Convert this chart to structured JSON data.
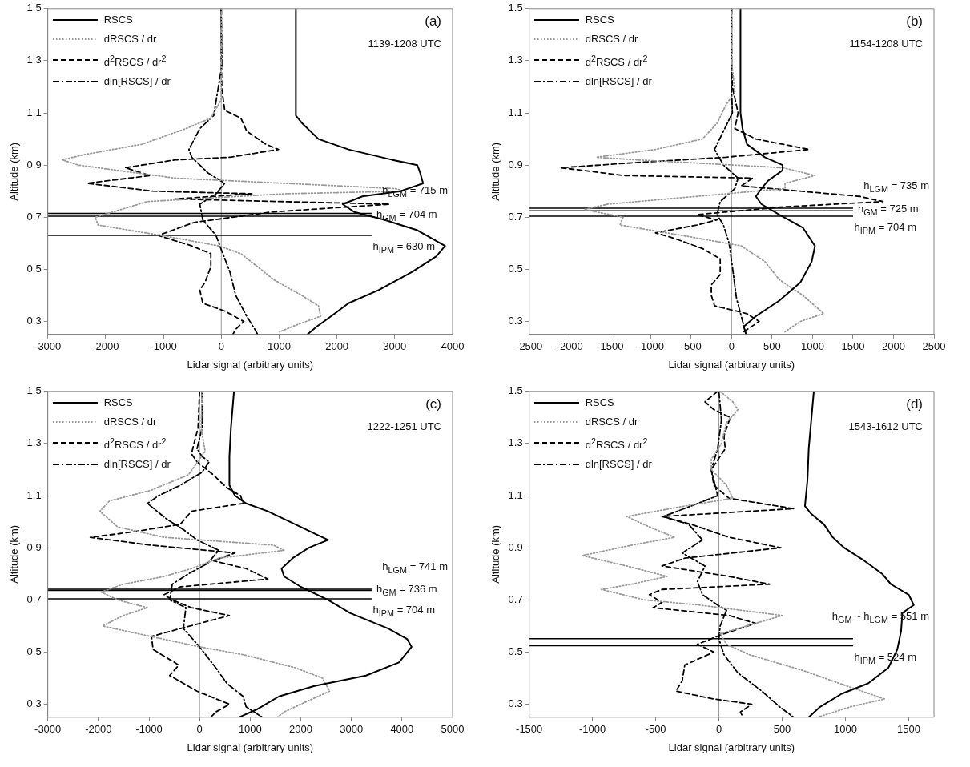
{
  "chart_data": [
    {
      "type": "line",
      "xlabel": "Lidar signal (arbitrary units)",
      "ylabel": "Altitude (km)",
      "annotations": [
        "(a)",
        "1139-1208 UTC"
      ],
      "xlim": [
        -3000,
        4000
      ],
      "xticks": [
        -3000,
        -2000,
        -1000,
        0,
        1000,
        2000,
        3000,
        4000
      ],
      "ylim": [
        0.25,
        1.5
      ],
      "yticks": [
        0.3,
        0.5,
        0.7,
        0.9,
        1.1,
        1.3,
        1.5
      ],
      "legend": "top left",
      "marker": "none",
      "ref_lines": [
        {
          "axis": "x",
          "value": 0,
          "color": "#999999"
        },
        {
          "axis": "y",
          "value": 0.715,
          "label": "h$_{LGM}$ = 715 m"
        },
        {
          "axis": "y",
          "value": 0.704,
          "label": "h$_{GM}$ = 704 m"
        },
        {
          "axis": "y",
          "value": 0.63,
          "label": "h$_{IPM}$ = 630 m"
        }
      ],
      "series": [
        {
          "name": "RSCS",
          "color": "#000000",
          "line_style": "solid",
          "x": [
            1290,
            1290,
            1400,
            1680,
            2200,
            2960,
            3390,
            3440,
            3490,
            3100,
            2440,
            2100,
            2300,
            2820,
            3390,
            3870,
            3720,
            3300,
            2720,
            2200,
            1900,
            1650,
            1490
          ],
          "values": [
            1.5,
            1.09,
            1.06,
            1.0,
            0.96,
            0.92,
            0.9,
            0.87,
            0.83,
            0.8,
            0.78,
            0.75,
            0.72,
            0.69,
            0.65,
            0.59,
            0.55,
            0.49,
            0.42,
            0.37,
            0.32,
            0.28,
            0.25
          ]
        },
        {
          "name": "dRSCS / dr",
          "color": "#999999",
          "line_style": "dotted",
          "x": [
            0,
            0,
            -180,
            -610,
            -1370,
            -2370,
            -2750,
            -2470,
            -800,
            3010,
            3150,
            1100,
            -1280,
            -2180,
            -2130,
            -1040,
            -40,
            340,
            910,
            1390,
            1680,
            1720,
            1340,
            1010
          ],
          "values": [
            1.5,
            1.15,
            1.08,
            1.04,
            0.98,
            0.94,
            0.92,
            0.9,
            0.85,
            0.81,
            0.8,
            0.79,
            0.76,
            0.7,
            0.67,
            0.63,
            0.59,
            0.56,
            0.46,
            0.4,
            0.36,
            0.32,
            0.29,
            0.26
          ]
        },
        {
          "name": "d$^{2}$RSCS / dr$^{2}$",
          "color": "#000000",
          "line_style": "dashed",
          "x": [
            0,
            0,
            10,
            60,
            340,
            440,
            770,
            990,
            150,
            -800,
            -1660,
            -1230,
            -2320,
            -1180,
            530,
            -800,
            2910,
            870,
            -470,
            -1090,
            -510,
            -180,
            -180,
            -280,
            -370,
            -320,
            60,
            390,
            250,
            200
          ],
          "values": [
            1.5,
            1.3,
            1.19,
            1.11,
            1.08,
            1.03,
            0.98,
            0.96,
            0.93,
            0.92,
            0.89,
            0.86,
            0.83,
            0.8,
            0.79,
            0.77,
            0.75,
            0.72,
            0.68,
            0.63,
            0.59,
            0.56,
            0.51,
            0.45,
            0.42,
            0.37,
            0.34,
            0.3,
            0.27,
            0.25
          ]
        },
        {
          "name": "dln[RSCS] / dr",
          "color": "#000000",
          "line_style": "dashdot",
          "x": [
            0,
            10,
            -130,
            -370,
            -560,
            -510,
            -230,
            60,
            -90,
            -370,
            -320,
            -90,
            10,
            150,
            250,
            440,
            580,
            630
          ],
          "values": [
            1.5,
            1.28,
            1.09,
            1.04,
            0.96,
            0.93,
            0.87,
            0.83,
            0.79,
            0.75,
            0.69,
            0.63,
            0.57,
            0.49,
            0.4,
            0.32,
            0.27,
            0.25
          ]
        }
      ]
    },
    {
      "type": "line",
      "xlabel": "Lidar signal (arbitrary units)",
      "ylabel": "Altitude (km)",
      "annotations": [
        "(b)",
        "1154-1208 UTC"
      ],
      "xlim": [
        -2500,
        2500
      ],
      "xticks": [
        -2500,
        -2000,
        -1500,
        -1000,
        -500,
        0,
        500,
        1000,
        1500,
        2000,
        2500
      ],
      "ylim": [
        0.25,
        1.5
      ],
      "yticks": [
        0.3,
        0.5,
        0.7,
        0.9,
        1.1,
        1.3,
        1.5
      ],
      "legend": "top left",
      "marker": "none",
      "ref_lines": [
        {
          "axis": "x",
          "value": 0,
          "color": "#999999"
        },
        {
          "axis": "y",
          "value": 0.735,
          "label": "h$_{LGM}$ = 735 m"
        },
        {
          "axis": "y",
          "value": 0.725,
          "label": "h$_{GM}$ = 725 m"
        },
        {
          "axis": "y",
          "value": 0.704,
          "label": "h$_{IPM}$ = 704 m"
        }
      ],
      "series": [
        {
          "name": "RSCS",
          "color": "#000000",
          "line_style": "solid",
          "x": [
            110,
            110,
            135,
            190,
            410,
            630,
            630,
            450,
            370,
            300,
            370,
            590,
            880,
            1030,
            990,
            850,
            590,
            300,
            150,
            180
          ],
          "values": [
            1.5,
            1.1,
            1.04,
            0.98,
            0.93,
            0.9,
            0.88,
            0.84,
            0.81,
            0.78,
            0.75,
            0.71,
            0.66,
            0.59,
            0.53,
            0.45,
            0.38,
            0.32,
            0.28,
            0.25
          ]
        },
        {
          "name": "dRSCS / dr",
          "color": "#999999",
          "line_style": "dotted",
          "x": [
            0,
            0,
            40,
            -70,
            -180,
            -360,
            -940,
            -1670,
            -1160,
            630,
            1030,
            660,
            660,
            -430,
            -1530,
            -1820,
            -1340,
            -1380,
            -610,
            120,
            410,
            590,
            880,
            1140,
            850,
            660
          ],
          "values": [
            1.5,
            1.3,
            1.18,
            1.13,
            1.06,
            1.0,
            0.96,
            0.93,
            0.92,
            0.89,
            0.86,
            0.83,
            0.81,
            0.78,
            0.75,
            0.73,
            0.7,
            0.67,
            0.63,
            0.59,
            0.53,
            0.46,
            0.4,
            0.33,
            0.3,
            0.26
          ]
        },
        {
          "name": "d$^{2}$RSCS / dr$^{2}$",
          "color": "#000000",
          "line_style": "dashed",
          "x": [
            0,
            0,
            10,
            80,
            40,
            300,
            960,
            -70,
            -1160,
            -2110,
            -1340,
            260,
            120,
            1580,
            1870,
            660,
            -430,
            -180,
            -430,
            -940,
            -720,
            -360,
            -140,
            -140,
            -250,
            -250,
            -210,
            190,
            340,
            150
          ],
          "values": [
            1.5,
            1.3,
            1.2,
            1.1,
            1.04,
            1.0,
            0.96,
            0.93,
            0.91,
            0.89,
            0.86,
            0.85,
            0.82,
            0.78,
            0.76,
            0.74,
            0.71,
            0.69,
            0.67,
            0.64,
            0.62,
            0.58,
            0.54,
            0.48,
            0.44,
            0.4,
            0.36,
            0.33,
            0.3,
            0.26
          ]
        },
        {
          "name": "dln[RSCS] / dr",
          "color": "#000000",
          "line_style": "dashdot",
          "x": [
            0,
            0,
            10,
            -100,
            -210,
            -100,
            80,
            40,
            -140,
            -180,
            -100,
            -30,
            10,
            60,
            120,
            170
          ],
          "values": [
            1.5,
            1.2,
            1.1,
            1.03,
            0.96,
            0.9,
            0.85,
            0.81,
            0.76,
            0.71,
            0.67,
            0.6,
            0.51,
            0.39,
            0.32,
            0.26
          ]
        }
      ]
    },
    {
      "type": "line",
      "xlabel": "Lidar signal (arbitrary units)",
      "ylabel": "Altitude (km)",
      "annotations": [
        "(c)",
        "1222-1251 UTC"
      ],
      "xlim": [
        -3000,
        5000
      ],
      "xticks": [
        -3000,
        -2000,
        -1000,
        0,
        1000,
        2000,
        3000,
        4000,
        5000
      ],
      "ylim": [
        0.25,
        1.5
      ],
      "yticks": [
        0.3,
        0.5,
        0.7,
        0.9,
        1.1,
        1.3,
        1.5
      ],
      "legend": "top left",
      "marker": "none",
      "ref_lines": [
        {
          "axis": "x",
          "value": 0,
          "color": "#999999"
        },
        {
          "axis": "y",
          "value": 0.741,
          "label": "h$_{LGM}$ = 741 m"
        },
        {
          "axis": "y",
          "value": 0.736,
          "label": "h$_{GM}$ = 736 m"
        },
        {
          "axis": "y",
          "value": 0.704,
          "label": "h$_{IPM}$ = 704 m"
        }
      ],
      "series": [
        {
          "name": "RSCS",
          "color": "#000000",
          "line_style": "solid",
          "x": [
            680,
            620,
            590,
            590,
            700,
            920,
            1350,
            1890,
            2320,
            2540,
            2160,
            1840,
            1620,
            1670,
            2000,
            2540,
            2970,
            3730,
            4100,
            4190,
            3940,
            3290,
            2270,
            1570,
            1130,
            780
          ],
          "values": [
            1.5,
            1.36,
            1.25,
            1.14,
            1.1,
            1.07,
            1.04,
            0.99,
            0.95,
            0.93,
            0.9,
            0.86,
            0.82,
            0.79,
            0.75,
            0.7,
            0.65,
            0.59,
            0.55,
            0.52,
            0.46,
            0.41,
            0.37,
            0.33,
            0.28,
            0.25
          ]
        },
        {
          "name": "dRSCS / dr",
          "color": "#999999",
          "line_style": "dotted",
          "x": [
            50,
            30,
            110,
            -220,
            -970,
            -1780,
            -1970,
            -1620,
            -700,
            1460,
            1670,
            380,
            -160,
            -700,
            -1510,
            -1940,
            -1620,
            -1030,
            -1510,
            -1920,
            -970,
            0,
            860,
            1890,
            2430,
            2570,
            2000,
            1670,
            1540
          ],
          "values": [
            1.5,
            1.36,
            1.27,
            1.18,
            1.12,
            1.08,
            1.04,
            0.98,
            0.94,
            0.91,
            0.89,
            0.86,
            0.82,
            0.79,
            0.76,
            0.73,
            0.7,
            0.67,
            0.64,
            0.6,
            0.56,
            0.52,
            0.49,
            0.44,
            0.4,
            0.35,
            0.3,
            0.27,
            0.25
          ]
        },
        {
          "name": "d$^{2}$RSCS / dr$^{2}$",
          "color": "#000000",
          "line_style": "dashed",
          "x": [
            0,
            -30,
            -110,
            -160,
            -50,
            270,
            540,
            810,
            860,
            -160,
            -380,
            -1350,
            -2160,
            -970,
            700,
            270,
            920,
            1350,
            -380,
            -700,
            -540,
            -160,
            590,
            -380,
            -950,
            -920,
            -410,
            -590,
            -50,
            590,
            320,
            220
          ],
          "values": [
            1.5,
            1.36,
            1.3,
            1.26,
            1.23,
            1.18,
            1.13,
            1.1,
            1.07,
            1.04,
            0.99,
            0.96,
            0.94,
            0.91,
            0.88,
            0.85,
            0.82,
            0.78,
            0.75,
            0.72,
            0.7,
            0.67,
            0.64,
            0.59,
            0.56,
            0.51,
            0.45,
            0.41,
            0.35,
            0.3,
            0.27,
            0.25
          ]
        },
        {
          "name": "dln[RSCS] / dr",
          "color": "#000000",
          "line_style": "dashdot",
          "x": [
            50,
            50,
            -50,
            50,
            190,
            50,
            -380,
            -810,
            -1030,
            -650,
            -320,
            -50,
            380,
            160,
            -220,
            -540,
            -590,
            -270,
            -320,
            0,
            320,
            540,
            860,
            920,
            1240
          ],
          "values": [
            1.5,
            1.36,
            1.28,
            1.25,
            1.23,
            1.19,
            1.14,
            1.1,
            1.07,
            1.01,
            0.97,
            0.93,
            0.89,
            0.84,
            0.8,
            0.76,
            0.7,
            0.67,
            0.59,
            0.52,
            0.44,
            0.38,
            0.33,
            0.29,
            0.25
          ]
        }
      ]
    },
    {
      "type": "line",
      "xlabel": "Lidar signal (arbitrary units)",
      "ylabel": "Altitude (km)",
      "annotations": [
        "(d)",
        "1543-1612 UTC"
      ],
      "xlim": [
        -1500,
        1700
      ],
      "xticks": [
        -1500,
        -1000,
        -500,
        0,
        500,
        1000,
        1500
      ],
      "ylim": [
        0.25,
        1.5
      ],
      "yticks": [
        0.3,
        0.5,
        0.7,
        0.9,
        1.1,
        1.3,
        1.5
      ],
      "legend": "top left",
      "marker": "none",
      "ref_lines": [
        {
          "axis": "x",
          "value": 0,
          "color": "#999999"
        },
        {
          "axis": "y",
          "value": 0.551,
          "label": "h$_{GM}$ ~ h$_{LGM}$ = 551 m"
        },
        {
          "axis": "y",
          "value": 0.524,
          "label": "h$_{IPM}$ = 524 m"
        }
      ],
      "series": [
        {
          "name": "RSCS",
          "color": "#000000",
          "line_style": "solid",
          "x": [
            750,
            730,
            710,
            700,
            680,
            730,
            830,
            900,
            990,
            1150,
            1290,
            1360,
            1500,
            1540,
            1450,
            1440,
            1410,
            1340,
            1180,
            970,
            800,
            710
          ],
          "values": [
            1.5,
            1.39,
            1.28,
            1.16,
            1.06,
            1.03,
            0.99,
            0.94,
            0.9,
            0.85,
            0.8,
            0.76,
            0.72,
            0.68,
            0.65,
            0.58,
            0.51,
            0.44,
            0.38,
            0.34,
            0.29,
            0.25
          ]
        },
        {
          "name": "dRSCS / dr",
          "color": "#999999",
          "line_style": "dotted",
          "x": [
            10,
            110,
            150,
            60,
            20,
            -60,
            -60,
            60,
            110,
            -270,
            -730,
            -550,
            -350,
            -690,
            -1080,
            -730,
            -410,
            -690,
            -930,
            -590,
            -150,
            500,
            290,
            10,
            60,
            240,
            660,
            1010,
            1310,
            1040,
            780
          ],
          "values": [
            1.5,
            1.46,
            1.43,
            1.38,
            1.3,
            1.24,
            1.2,
            1.14,
            1.09,
            1.06,
            1.02,
            0.98,
            0.94,
            0.91,
            0.87,
            0.83,
            0.79,
            0.76,
            0.74,
            0.7,
            0.68,
            0.64,
            0.61,
            0.57,
            0.53,
            0.49,
            0.43,
            0.37,
            0.32,
            0.29,
            0.25
          ]
        },
        {
          "name": "d$^{2}$RSCS / dr$^{2}$",
          "color": "#000000",
          "line_style": "dashed",
          "x": [
            -10,
            -110,
            -40,
            90,
            40,
            50,
            -60,
            -40,
            80,
            590,
            -450,
            -220,
            80,
            490,
            -270,
            -450,
            80,
            400,
            -450,
            -550,
            -450,
            -520,
            80,
            290,
            40,
            -170,
            -40,
            -270,
            -290,
            -340,
            -40,
            260,
            170,
            190
          ],
          "values": [
            1.5,
            1.46,
            1.43,
            1.4,
            1.33,
            1.28,
            1.2,
            1.14,
            1.09,
            1.05,
            1.02,
            0.99,
            0.94,
            0.9,
            0.86,
            0.83,
            0.79,
            0.76,
            0.74,
            0.72,
            0.69,
            0.67,
            0.64,
            0.61,
            0.57,
            0.53,
            0.5,
            0.45,
            0.39,
            0.35,
            0.32,
            0.3,
            0.27,
            0.25
          ]
        },
        {
          "name": "dln[RSCS] / dr",
          "color": "#000000",
          "line_style": "dashdot",
          "x": [
            0,
            20,
            -10,
            -60,
            -10,
            -220,
            -440,
            -240,
            -130,
            -290,
            -110,
            -170,
            -130,
            -10,
            60,
            10,
            0,
            40,
            150,
            340,
            480,
            590
          ],
          "values": [
            1.5,
            1.39,
            1.28,
            1.2,
            1.1,
            1.06,
            1.02,
            0.99,
            0.93,
            0.88,
            0.83,
            0.77,
            0.72,
            0.68,
            0.66,
            0.6,
            0.55,
            0.49,
            0.42,
            0.35,
            0.29,
            0.25
          ]
        }
      ]
    }
  ]
}
